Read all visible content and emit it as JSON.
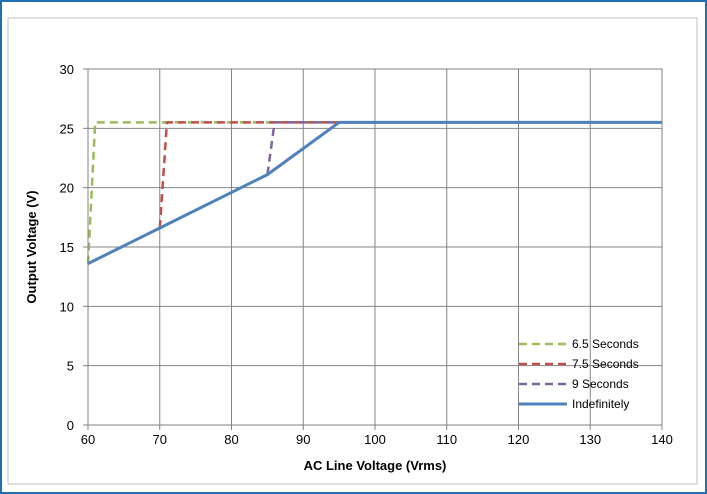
{
  "chart_data": {
    "type": "line",
    "xlabel": "AC Line Voltage (Vrms)",
    "ylabel": "Output Voltage (V)",
    "xlim": [
      60,
      140
    ],
    "ylim": [
      0,
      30
    ],
    "xticks": [
      60,
      70,
      80,
      90,
      100,
      110,
      120,
      130,
      140
    ],
    "yticks": [
      0,
      5,
      10,
      15,
      20,
      25,
      30
    ],
    "grid": true,
    "legend_position": "bottom-right",
    "series": [
      {
        "name": "6.5 Seconds",
        "color": "#9bbb59",
        "dash": "dashed",
        "x": [
          60,
          61,
          61,
          140
        ],
        "y": [
          13.6,
          25.5,
          25.5,
          25.5
        ]
      },
      {
        "name": "7.5 Seconds",
        "color": "#c0504d",
        "dash": "dashed",
        "x": [
          70,
          71,
          71,
          140
        ],
        "y": [
          16.6,
          25.5,
          25.5,
          25.5
        ]
      },
      {
        "name": "9 Seconds",
        "color": "#8064a2",
        "dash": "dashed",
        "x": [
          85,
          86,
          86,
          140
        ],
        "y": [
          21.1,
          25.5,
          25.5,
          25.5
        ]
      },
      {
        "name": "Indefinitely",
        "color": "#4f81bd",
        "dash": "solid",
        "x": [
          60,
          70,
          85,
          95,
          140
        ],
        "y": [
          13.6,
          16.6,
          21.1,
          25.5,
          25.5
        ]
      }
    ]
  }
}
